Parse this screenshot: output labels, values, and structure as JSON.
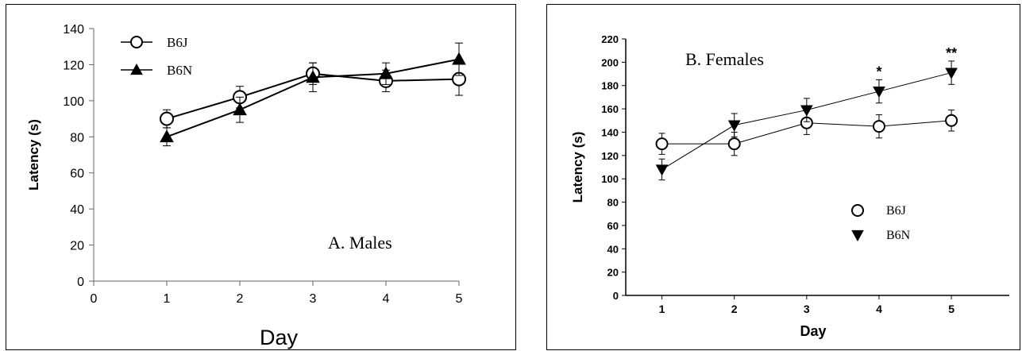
{
  "chart_data": [
    {
      "type": "line",
      "title": "",
      "annotation": "A. Males",
      "xlabel": "Day",
      "ylabel": "Latency (s)",
      "xlim": [
        0,
        5
      ],
      "ylim": [
        0,
        140
      ],
      "x_ticks": [
        0,
        1,
        2,
        3,
        4,
        5
      ],
      "y_ticks": [
        0,
        20,
        40,
        60,
        80,
        100,
        120,
        140
      ],
      "legend_position": "top-left",
      "error_bars": true,
      "series": [
        {
          "name": "B6J",
          "marker": "open-circle",
          "x": [
            1,
            2,
            3,
            4,
            5
          ],
          "values": [
            90,
            102,
            115,
            111,
            112
          ],
          "error": [
            5,
            6,
            6,
            6,
            9
          ]
        },
        {
          "name": "B6N",
          "marker": "filled-triangle-up",
          "x": [
            1,
            2,
            3,
            4,
            5
          ],
          "values": [
            80,
            95,
            113,
            115,
            123
          ],
          "error": [
            5,
            7,
            8,
            6,
            9
          ]
        }
      ]
    },
    {
      "type": "line",
      "title": "",
      "annotation": "B. Females",
      "xlabel": "Day",
      "ylabel": "Latency (s)",
      "xlim": [
        0.5,
        5.8
      ],
      "ylim": [
        0,
        220
      ],
      "x_ticks": [
        1,
        2,
        3,
        4,
        5
      ],
      "y_ticks": [
        0,
        20,
        40,
        60,
        80,
        100,
        120,
        140,
        160,
        180,
        200,
        220
      ],
      "legend_position": "bottom-right",
      "error_bars": true,
      "series": [
        {
          "name": "B6J",
          "marker": "open-circle",
          "x": [
            1,
            2,
            3,
            4,
            5
          ],
          "values": [
            130,
            130,
            148,
            145,
            150
          ],
          "error": [
            9,
            10,
            10,
            10,
            9
          ]
        },
        {
          "name": "B6N",
          "marker": "filled-triangle-down",
          "x": [
            1,
            2,
            3,
            4,
            5
          ],
          "values": [
            108,
            146,
            159,
            175,
            191
          ],
          "error": [
            9,
            10,
            10,
            10,
            10
          ]
        }
      ],
      "significance": [
        {
          "x": 4,
          "label": "*"
        },
        {
          "x": 5,
          "label": "**"
        }
      ]
    }
  ]
}
